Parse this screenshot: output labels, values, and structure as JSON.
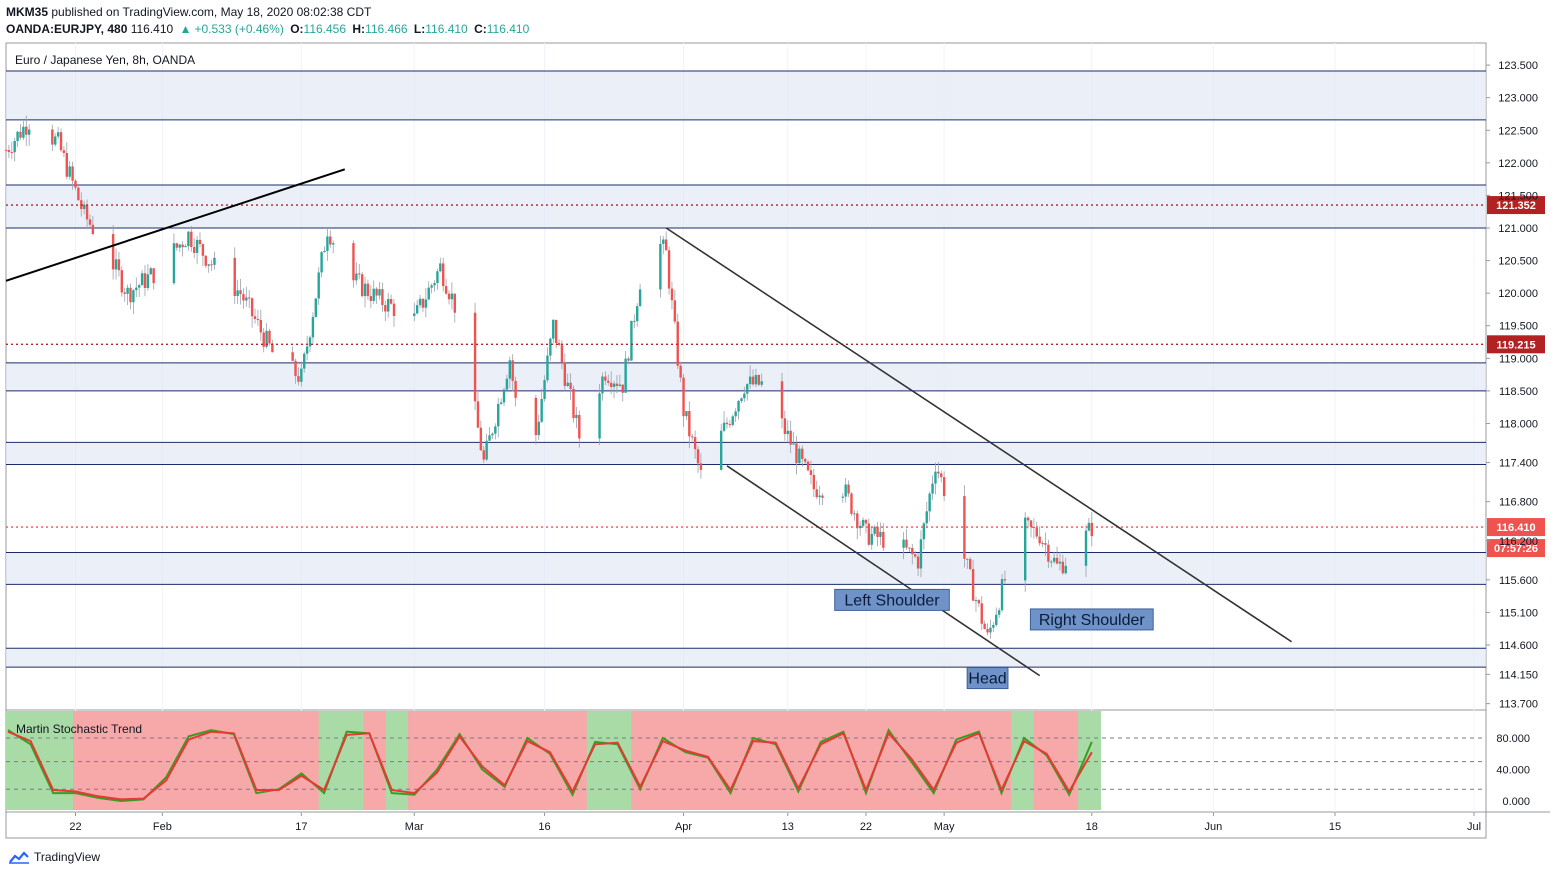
{
  "header": {
    "published_line_user": "MKM35",
    "published_line_rest": " published on TradingView.com, May 18, 2020 08:02:38 CDT",
    "symbol": "OANDA:EURJPY, 480",
    "last": "116.410",
    "change": "+0.533 (+0.46%)",
    "o_label": "O:",
    "o": "116.456",
    "h_label": "H:",
    "h": "116.466",
    "l_label": "L:",
    "l": "116.410",
    "c_label": "C:",
    "c": "116.410"
  },
  "chart_title": "Euro / Japanese Yen, 8h, OANDA",
  "footer": {
    "brand": "TradingView"
  },
  "colors": {
    "up": "#26a69a",
    "down": "#ef5350",
    "zone": "#e3e9f5",
    "zone_line": "#1e2b6b",
    "level_red": "#b22222",
    "stoch_green": "#3a9d23",
    "stoch_red": "#e53935",
    "bg_red": "#f7a8a8",
    "bg_green": "#a9dba6",
    "label_box": "#6f93c8"
  },
  "chart_data": [
    {
      "type": "candlestick",
      "title": "Euro / Japanese Yen, 8h, OANDA",
      "y_ticks": [
        "123.500",
        "123.000",
        "122.500",
        "122.000",
        "121.500",
        "121.000",
        "120.500",
        "120.000",
        "119.500",
        "119.000",
        "118.500",
        "118.000",
        "117.400",
        "116.800",
        "116.200",
        "115.600",
        "115.100",
        "114.600",
        "114.150",
        "113.700"
      ],
      "x_ticks": [
        "22",
        "Feb",
        "17",
        "Mar",
        "16",
        "Apr",
        "13",
        "22",
        "May",
        "18",
        "Jun",
        "15",
        "Jul"
      ],
      "price_markers": [
        {
          "label": "121.352",
          "value": 121.352,
          "color": "#b22222",
          "line": "dotted"
        },
        {
          "label": "119.215",
          "value": 119.215,
          "color": "#b22222",
          "line": "dotted"
        },
        {
          "label": "116.410",
          "value": 116.41,
          "color": "#ef5350",
          "line": "dotted"
        },
        {
          "label": "07:57:26",
          "color": "#ef5350"
        }
      ],
      "zones": [
        {
          "from": 122.66,
          "to": 123.41
        },
        {
          "from": 121.0,
          "to": 121.66
        },
        {
          "from": 118.5,
          "to": 118.93
        },
        {
          "from": 117.37,
          "to": 117.71
        },
        {
          "from": 115.53,
          "to": 116.02
        },
        {
          "from": 114.26,
          "to": 114.55
        }
      ],
      "close_path": [
        [
          "Jan 14",
          122.2
        ],
        [
          "Jan 17",
          122.7
        ],
        [
          "Jan 20",
          122.3
        ],
        [
          "Jan 23",
          121.2
        ],
        [
          "Jan 25",
          120.8
        ],
        [
          "Jan 28",
          120.0
        ],
        [
          "Jan 31",
          120.3
        ],
        [
          "Feb 4",
          120.9
        ],
        [
          "Feb 7",
          120.4
        ],
        [
          "Feb 10",
          120.0
        ],
        [
          "Feb 14",
          119.0
        ],
        [
          "Feb 17",
          118.7
        ],
        [
          "Feb 20",
          121.0
        ],
        [
          "Feb 23",
          120.2
        ],
        [
          "Feb 26",
          119.9
        ],
        [
          "Mar 1",
          119.6
        ],
        [
          "Mar 4",
          120.4
        ],
        [
          "Mar 6",
          119.7
        ],
        [
          "Mar 9",
          117.4
        ],
        [
          "Mar 12",
          119.0
        ],
        [
          "Mar 14",
          117.0
        ],
        [
          "Mar 17",
          119.5
        ],
        [
          "Mar 20",
          117.8
        ],
        [
          "Mar 23",
          118.8
        ],
        [
          "Mar 25",
          118.6
        ],
        [
          "Mar 28",
          121.0
        ],
        [
          "Mar 30",
          120.6
        ],
        [
          "Apr 1",
          118.2
        ],
        [
          "Apr 3",
          117.2
        ],
        [
          "Apr 6",
          118.0
        ],
        [
          "Apr 8",
          118.6
        ],
        [
          "Apr 10",
          118.6
        ],
        [
          "Apr 13",
          117.8
        ],
        [
          "Apr 16",
          117.0
        ],
        [
          "Apr 19",
          117.1
        ],
        [
          "Apr 22",
          116.3
        ],
        [
          "Apr 25",
          116.2
        ],
        [
          "Apr 28",
          115.9
        ],
        [
          "Apr 30",
          117.4
        ],
        [
          "May 2",
          116.6
        ],
        [
          "May 4",
          115.6
        ],
        [
          "May 6",
          114.7
        ],
        [
          "May 8",
          115.6
        ],
        [
          "May 10",
          116.4
        ],
        [
          "May 12",
          116.3
        ],
        [
          "May 14",
          115.8
        ],
        [
          "May 16",
          116.0
        ],
        [
          "May 18",
          116.41
        ]
      ],
      "trendlines": [
        {
          "from": [
            "Jan 14",
            120.19
          ],
          "to": [
            "Feb 22",
            121.9
          ]
        },
        {
          "from": [
            "Mar 30",
            121.0
          ],
          "to": [
            "Jun 10",
            114.65
          ]
        },
        {
          "from": [
            "Apr 6",
            117.35
          ],
          "to": [
            "May 12",
            114.13
          ]
        }
      ],
      "annotations": [
        {
          "text": "Left Shoulder",
          "at": [
            "Apr 25",
            115.3
          ]
        },
        {
          "text": "Head",
          "at": [
            "May 6",
            114.1
          ]
        },
        {
          "text": "Right Shoulder",
          "at": [
            "May 18",
            115.0
          ]
        }
      ]
    },
    {
      "type": "line",
      "title": "Martin Stochastic Trend",
      "y_ticks": [
        "80.000",
        "40.000",
        "0.000"
      ],
      "ylim": [
        0,
        100
      ],
      "series": [
        {
          "color": "#3a9d23",
          "values": [
            90,
            72,
            10,
            10,
            4,
            0,
            2,
            30,
            82,
            90,
            85,
            10,
            15,
            35,
            10,
            88,
            86,
            10,
            8,
            40,
            85,
            40,
            18,
            80,
            60,
            8,
            75,
            72,
            15,
            80,
            62,
            55,
            10,
            80,
            72,
            12,
            75,
            88,
            10,
            90,
            50,
            10,
            78,
            88,
            10,
            80,
            58,
            8,
            75
          ]
        },
        {
          "color": "#e53935",
          "values": [
            88,
            76,
            14,
            12,
            6,
            2,
            3,
            26,
            78,
            88,
            86,
            14,
            14,
            32,
            14,
            84,
            86,
            14,
            10,
            36,
            82,
            44,
            20,
            76,
            62,
            12,
            72,
            74,
            18,
            76,
            64,
            56,
            14,
            76,
            74,
            16,
            72,
            86,
            14,
            86,
            54,
            14,
            74,
            86,
            14,
            76,
            60,
            12,
            62
          ]
        }
      ],
      "background": [
        "green",
        "green",
        "green",
        "red",
        "red",
        "red",
        "red",
        "red",
        "red",
        "red",
        "red",
        "red",
        "red",
        "red",
        "green",
        "green",
        "red",
        "green",
        "red",
        "red",
        "red",
        "red",
        "red",
        "red",
        "red",
        "red",
        "green",
        "green",
        "red",
        "red",
        "red",
        "red",
        "red",
        "red",
        "red",
        "red",
        "red",
        "red",
        "red",
        "red",
        "red",
        "red",
        "red",
        "red",
        "red",
        "green",
        "red",
        "red",
        "green"
      ]
    }
  ]
}
